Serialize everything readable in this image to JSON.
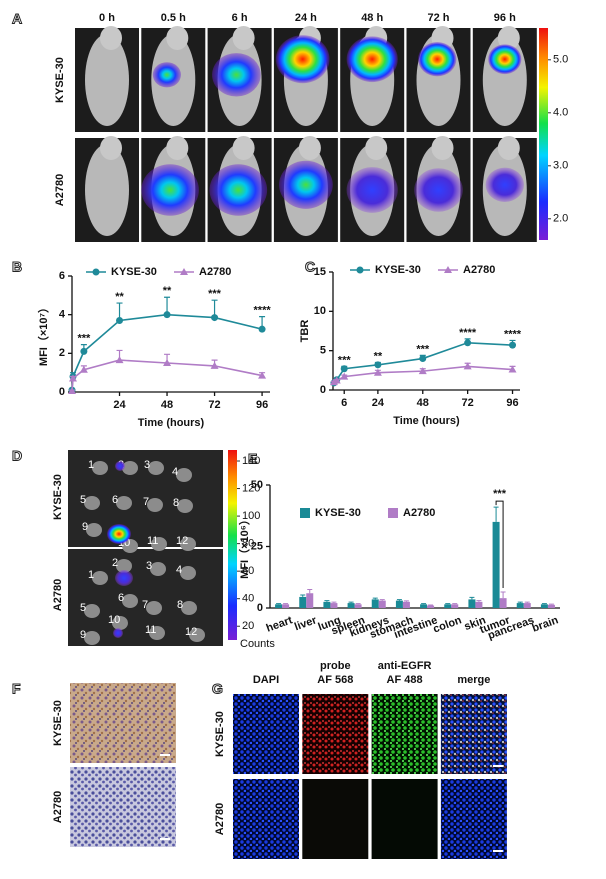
{
  "panel_labels": [
    "A",
    "B",
    "C",
    "D",
    "E",
    "F",
    "G"
  ],
  "panel_a": {
    "times": [
      "0 h",
      "0.5 h",
      "6 h",
      "24 h",
      "48 h",
      "72 h",
      "96 h"
    ],
    "rows": [
      "KYSE-30",
      "A2780"
    ],
    "colorbar_ticks": [
      {
        "value": 5,
        "label": "5.0"
      },
      {
        "value": 4,
        "label": "4.0"
      },
      {
        "value": 3,
        "label": "3.0"
      },
      {
        "value": 2,
        "label": "2.0"
      }
    ],
    "colorbar_lim": [
      1.6,
      5.6
    ]
  },
  "chart_data": [
    {
      "type": "line",
      "ylabel": "MFI（×10⁷）",
      "xlabel": "Time (hours)",
      "x": [
        0,
        0.5,
        6,
        24,
        48,
        72,
        96
      ],
      "xlim": [
        0,
        100
      ],
      "xticks": [
        24,
        48,
        72,
        96
      ],
      "ylim": [
        0,
        6
      ],
      "yticks": [
        0,
        2,
        4,
        6
      ],
      "series": [
        {
          "name": "KYSE-30",
          "color": "#1f8a99",
          "marker": "circle",
          "values": [
            0.1,
            0.8,
            2.1,
            3.7,
            4.0,
            3.85,
            3.25
          ],
          "errors": [
            0.05,
            0.2,
            0.35,
            0.9,
            0.9,
            0.9,
            0.65
          ]
        },
        {
          "name": "A2780",
          "color": "#b07cc6",
          "marker": "triangle",
          "values": [
            0.05,
            0.7,
            1.15,
            1.65,
            1.5,
            1.35,
            0.85
          ],
          "errors": [
            0.05,
            0.1,
            0.2,
            0.5,
            0.45,
            0.3,
            0.15
          ]
        }
      ],
      "annotations": [
        {
          "text": "***",
          "x": 6
        },
        {
          "text": "**",
          "x": 24
        },
        {
          "text": "**",
          "x": 48
        },
        {
          "text": "***",
          "x": 72
        },
        {
          "text": "****",
          "x": 96
        }
      ]
    },
    {
      "type": "line",
      "ylabel": "TBR",
      "xlabel": "Time (hours)",
      "x": [
        0.5,
        2,
        6,
        24,
        48,
        72,
        96
      ],
      "xlim": [
        0,
        100
      ],
      "xticks": [
        6,
        24,
        48,
        72,
        96
      ],
      "ylim": [
        0,
        15
      ],
      "yticks": [
        0,
        5,
        10,
        15
      ],
      "series": [
        {
          "name": "KYSE-30",
          "color": "#1f8a99",
          "marker": "circle",
          "values": [
            0.9,
            1.3,
            2.7,
            3.2,
            4.0,
            6.0,
            5.7
          ],
          "errors": [
            0.1,
            0.15,
            0.3,
            0.3,
            0.4,
            0.5,
            0.6
          ]
        },
        {
          "name": "A2780",
          "color": "#b07cc6",
          "marker": "triangle",
          "values": [
            1.0,
            1.2,
            1.7,
            2.2,
            2.4,
            3.0,
            2.6
          ],
          "errors": [
            0.1,
            0.1,
            0.2,
            0.3,
            0.3,
            0.4,
            0.4
          ]
        }
      ],
      "annotations": [
        {
          "text": "***",
          "x": 6
        },
        {
          "text": "**",
          "x": 24
        },
        {
          "text": "***",
          "x": 48
        },
        {
          "text": "****",
          "x": 72
        },
        {
          "text": "****",
          "x": 96
        }
      ]
    },
    {
      "type": "bar",
      "ylabel": "MFI（×10⁶）",
      "categories": [
        "heart",
        "liver",
        "lung",
        "spleen",
        "kidneys",
        "stomach",
        "intestine",
        "colon",
        "skin",
        "tumor",
        "pancreas",
        "brain"
      ],
      "ylim": [
        0,
        50
      ],
      "yticks": [
        0,
        25,
        50
      ],
      "series": [
        {
          "name": "KYSE-30",
          "color": "#1a8a96",
          "values": [
            1.5,
            4.5,
            2.5,
            2,
            3.5,
            3,
            1.5,
            1.5,
            3.5,
            35,
            2,
            1.5
          ],
          "errors": [
            0.3,
            0.8,
            0.5,
            0.4,
            0.5,
            0.4,
            0.3,
            0.3,
            0.8,
            6,
            0.4,
            0.3
          ]
        },
        {
          "name": "A2780",
          "color": "#b07cc6",
          "values": [
            1.5,
            6,
            2,
            1.5,
            3,
            2.5,
            1,
            1.5,
            2.5,
            4,
            2,
            1.3
          ],
          "errors": [
            0.3,
            1.5,
            0.4,
            0.3,
            0.4,
            0.4,
            0.2,
            0.3,
            0.5,
            2.5,
            0.4,
            0.3
          ]
        }
      ],
      "annotations": [
        {
          "text": "***",
          "category": "tumor"
        }
      ]
    }
  ],
  "panel_d": {
    "rows": [
      "KYSE-30",
      "A2780"
    ],
    "organ_numbers": [
      1,
      2,
      3,
      4,
      5,
      6,
      7,
      8,
      9,
      10,
      11,
      12
    ],
    "colorbar_ticks": [
      140,
      120,
      100,
      80,
      60,
      40,
      20
    ],
    "colorbar_lim": [
      10,
      148
    ],
    "colorbar_unit": "Counts"
  },
  "panel_f": {
    "rows": [
      "KYSE-30",
      "A2780"
    ]
  },
  "panel_g": {
    "rows": [
      "KYSE-30",
      "A2780"
    ],
    "columns": [
      [
        "DAPI"
      ],
      [
        "probe",
        "AF 568"
      ],
      [
        "anti-EGFR",
        "AF 488"
      ],
      [
        "merge"
      ]
    ]
  }
}
